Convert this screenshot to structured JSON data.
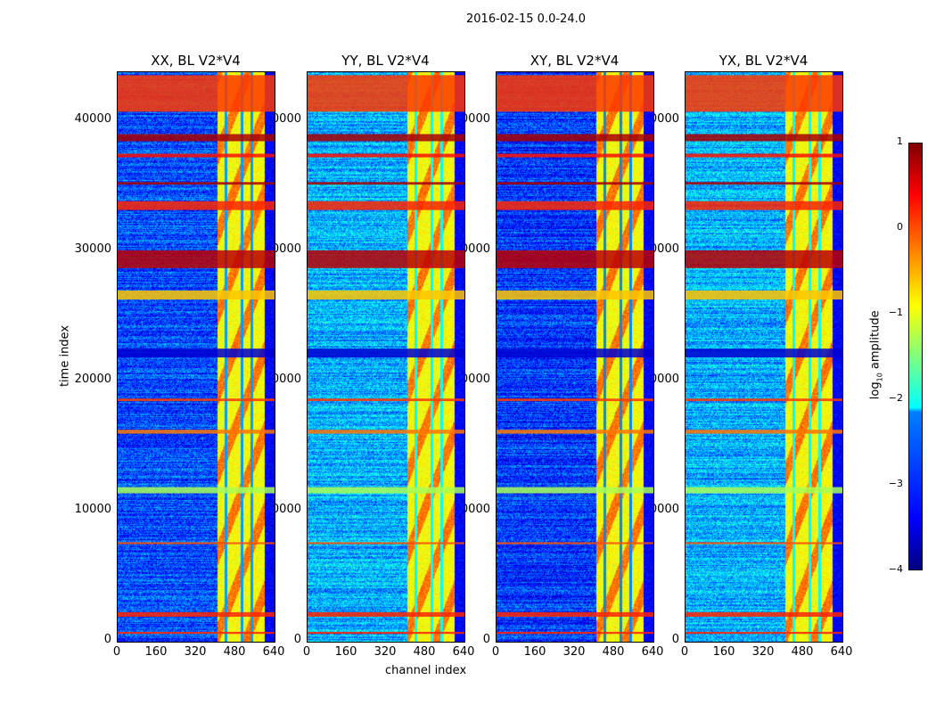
{
  "figure_title": "2016-02-15 0.0-24.0",
  "chart_data": [
    {
      "type": "heatmap",
      "title": "XX, BL V2*V4",
      "xlabel": "",
      "ylabel": "time index",
      "xlim": [
        0,
        640
      ],
      "ylim": [
        0,
        43800
      ],
      "xticks": [
        0,
        160,
        320,
        480,
        640
      ],
      "yticks": [
        0,
        10000,
        20000,
        30000,
        40000
      ],
      "base_level": -3.0
    },
    {
      "type": "heatmap",
      "title": "YY, BL V2*V4",
      "xlabel": "channel index",
      "ylabel": "",
      "xlim": [
        0,
        640
      ],
      "ylim": [
        0,
        43800
      ],
      "xticks": [
        0,
        160,
        320,
        480,
        640
      ],
      "yticks": [
        0,
        10000,
        20000,
        30000,
        40000
      ],
      "base_level": -2.5
    },
    {
      "type": "heatmap",
      "title": "XY, BL V2*V4",
      "xlabel": "",
      "ylabel": "",
      "xlim": [
        0,
        640
      ],
      "ylim": [
        0,
        43800
      ],
      "xticks": [
        0,
        160,
        320,
        480,
        640
      ],
      "yticks": [
        0,
        10000,
        20000,
        30000,
        40000
      ],
      "base_level": -3.1
    },
    {
      "type": "heatmap",
      "title": "YX, BL V2*V4",
      "xlabel": "",
      "ylabel": "",
      "xlim": [
        0,
        640
      ],
      "ylim": [
        0,
        43800
      ],
      "xticks": [
        0,
        160,
        320,
        480,
        640
      ],
      "yticks": [
        0,
        10000,
        20000,
        30000,
        40000
      ],
      "base_level": -2.5
    }
  ],
  "features": {
    "bright_channel_range": [
      405,
      600
    ],
    "bright_level": -0.9,
    "gap_channels": [
      440,
      505,
      545
    ],
    "dark_channel_range": [
      600,
      640
    ],
    "time_bands": [
      {
        "t0": 40760,
        "t1": 43570,
        "level": 0.1
      },
      {
        "t0": 38490,
        "t1": 39040,
        "level": 0.8
      },
      {
        "t0": 37250,
        "t1": 37530,
        "level": 0.3
      },
      {
        "t0": 35150,
        "t1": 35350,
        "level": 0.8
      },
      {
        "t0": 33200,
        "t1": 33880,
        "level": 0.2
      },
      {
        "t0": 28730,
        "t1": 30100,
        "level": 0.7
      },
      {
        "t0": 26320,
        "t1": 27010,
        "level": -0.6
      },
      {
        "t0": 21860,
        "t1": 22540,
        "level": -3.6
      },
      {
        "t0": 18500,
        "t1": 18700,
        "level": 0.1
      },
      {
        "t0": 16000,
        "t1": 16300,
        "level": -0.2
      },
      {
        "t0": 11410,
        "t1": 11890,
        "level": -1.3
      },
      {
        "t0": 7500,
        "t1": 7650,
        "level": 0.0
      },
      {
        "t0": 1920,
        "t1": 2270,
        "level": 0.2
      },
      {
        "t0": 600,
        "t1": 760,
        "level": 0.2
      }
    ]
  },
  "colorbar": {
    "label": "log₁₀ amplitude",
    "ticks": [
      "1",
      "0",
      "−1",
      "−2",
      "−3",
      "−4"
    ],
    "range": [
      -4,
      1
    ]
  }
}
